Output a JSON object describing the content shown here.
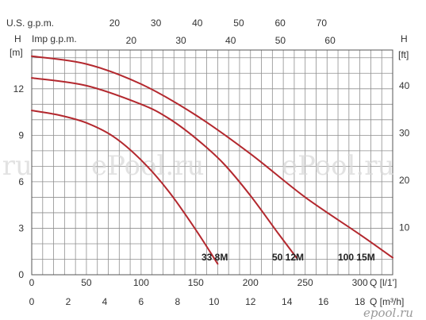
{
  "chart_data": {
    "type": "line",
    "title": "",
    "colors": {
      "curve": "#b3282e",
      "grid": "#8f8f8f",
      "frame": "#555555",
      "text": "#333333"
    },
    "grid": true,
    "axes": {
      "left": {
        "label": "H",
        "unit": "[m]",
        "range": [
          0,
          14.5
        ],
        "ticks": [
          "0",
          "3",
          "6",
          "9",
          "12"
        ]
      },
      "right": {
        "label": "H",
        "unit": "[ft]",
        "range": [
          0,
          47.57
        ],
        "ticks": [
          "10",
          "20",
          "30",
          "40"
        ]
      },
      "bottom_primary": {
        "label": "Q [l/1']",
        "range": [
          0,
          330
        ],
        "ticks": [
          "0",
          "50",
          "100",
          "150",
          "200",
          "250",
          "300"
        ]
      },
      "bottom_secondary": {
        "label": "Q [m³/h]",
        "range": [
          0,
          19.8
        ],
        "ticks": [
          "0",
          "2",
          "4",
          "6",
          "8",
          "10",
          "12",
          "14",
          "16",
          "18"
        ]
      },
      "top_us": {
        "label": "U.S. g.p.m.",
        "range": [
          0,
          87.18
        ],
        "ticks": [
          "20",
          "30",
          "40",
          "50",
          "60",
          "70"
        ]
      },
      "top_imp": {
        "label": "Imp g.p.m.",
        "range": [
          0,
          72.59
        ],
        "ticks": [
          "20",
          "30",
          "40",
          "50",
          "60"
        ]
      }
    },
    "series": [
      {
        "name": "33 8M",
        "x": [
          0,
          25,
          50,
          75,
          100,
          125,
          150,
          170
        ],
        "y": [
          10.6,
          10.3,
          9.8,
          8.9,
          7.4,
          5.4,
          2.9,
          0.7
        ]
      },
      {
        "name": "50 12M",
        "x": [
          0,
          50,
          100,
          125,
          150,
          175,
          200,
          225,
          242
        ],
        "y": [
          12.7,
          12.2,
          11.0,
          10.1,
          8.8,
          7.2,
          5.1,
          2.7,
          1.1
        ]
      },
      {
        "name": "100 15M",
        "x": [
          0,
          50,
          100,
          150,
          200,
          250,
          300,
          330
        ],
        "y": [
          14.1,
          13.6,
          12.3,
          10.3,
          7.8,
          5.0,
          2.6,
          1.1
        ]
      }
    ]
  },
  "watermarks": {
    "left": ".ru",
    "center": "ePool.ru",
    "right": "ePool.ru",
    "logo": "epool.ru"
  }
}
